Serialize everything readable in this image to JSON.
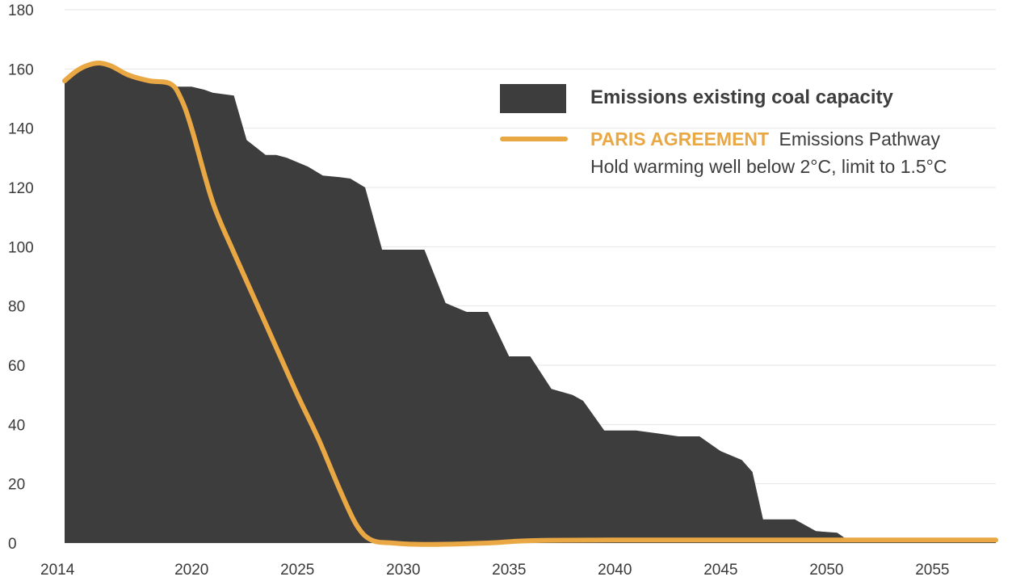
{
  "chart_data": {
    "type": "area",
    "xlim": [
      2014,
      2058
    ],
    "ylim": [
      0,
      180
    ],
    "y_ticks": [
      0,
      20,
      40,
      60,
      80,
      100,
      120,
      140,
      160,
      180
    ],
    "x_ticks": [
      2014,
      2020,
      2025,
      2030,
      2035,
      2040,
      2045,
      2050,
      2055
    ],
    "grid": "horizontal",
    "legend_position": "top-right",
    "colors": {
      "area": "#3d3d3d",
      "line": "#e9a843",
      "grid": "#e6e6e6",
      "text": "#3a3a3a"
    },
    "legend": {
      "area_label": "Emissions existing coal capacity",
      "line_label_highlight": "PARIS AGREEMENT",
      "line_label_rest": "Emissions Pathway",
      "line_label_second": "Hold warming well below 2°C, limit to 1.5°C"
    },
    "series": [
      {
        "name": "Emissions existing coal capacity",
        "kind": "area",
        "points": [
          [
            2014.0,
            156
          ],
          [
            2014.5,
            159
          ],
          [
            2015.0,
            161
          ],
          [
            2015.6,
            162
          ],
          [
            2016.2,
            161
          ],
          [
            2017.0,
            158
          ],
          [
            2018.0,
            156
          ],
          [
            2019.0,
            155
          ],
          [
            2019.3,
            154
          ],
          [
            2020.0,
            154
          ],
          [
            2020.6,
            153
          ],
          [
            2021.0,
            152
          ],
          [
            2022.0,
            151
          ],
          [
            2022.6,
            136
          ],
          [
            2023.5,
            131
          ],
          [
            2024.0,
            131
          ],
          [
            2024.5,
            130
          ],
          [
            2025.5,
            127
          ],
          [
            2026.2,
            124
          ],
          [
            2027.0,
            123.5
          ],
          [
            2027.5,
            123
          ],
          [
            2028.2,
            120
          ],
          [
            2029.0,
            99
          ],
          [
            2030.0,
            99
          ],
          [
            2031.0,
            99
          ],
          [
            2032.0,
            81
          ],
          [
            2033.0,
            78
          ],
          [
            2034.0,
            78
          ],
          [
            2035.0,
            63
          ],
          [
            2036.0,
            63
          ],
          [
            2037.0,
            52
          ],
          [
            2038.0,
            50
          ],
          [
            2038.5,
            48
          ],
          [
            2039.5,
            38
          ],
          [
            2040.0,
            38
          ],
          [
            2041.0,
            38
          ],
          [
            2042.0,
            37
          ],
          [
            2043.0,
            36
          ],
          [
            2044.0,
            36
          ],
          [
            2045.0,
            31
          ],
          [
            2046.0,
            28
          ],
          [
            2046.5,
            24
          ],
          [
            2047.0,
            8
          ],
          [
            2048.0,
            8
          ],
          [
            2048.5,
            8
          ],
          [
            2049.5,
            4
          ],
          [
            2050.5,
            3.5
          ],
          [
            2051.0,
            1
          ],
          [
            2058.0,
            1
          ]
        ]
      },
      {
        "name": "PARIS AGREEMENT Emissions Pathway",
        "kind": "line",
        "points": [
          [
            2014.0,
            156
          ],
          [
            2014.5,
            159
          ],
          [
            2015.0,
            161
          ],
          [
            2015.6,
            162
          ],
          [
            2016.2,
            161
          ],
          [
            2017.0,
            158
          ],
          [
            2018.0,
            156
          ],
          [
            2019.0,
            155
          ],
          [
            2019.5,
            150
          ],
          [
            2020.0,
            140
          ],
          [
            2021.0,
            115
          ],
          [
            2022.0,
            98
          ],
          [
            2023.0,
            82
          ],
          [
            2024.0,
            66
          ],
          [
            2025.0,
            50
          ],
          [
            2026.0,
            35
          ],
          [
            2027.0,
            18
          ],
          [
            2027.8,
            6
          ],
          [
            2028.5,
            1
          ],
          [
            2029.5,
            0
          ],
          [
            2031.0,
            -0.5
          ],
          [
            2034.0,
            0
          ],
          [
            2036.0,
            0.8
          ],
          [
            2040.0,
            1
          ],
          [
            2058.0,
            1
          ]
        ]
      }
    ]
  }
}
